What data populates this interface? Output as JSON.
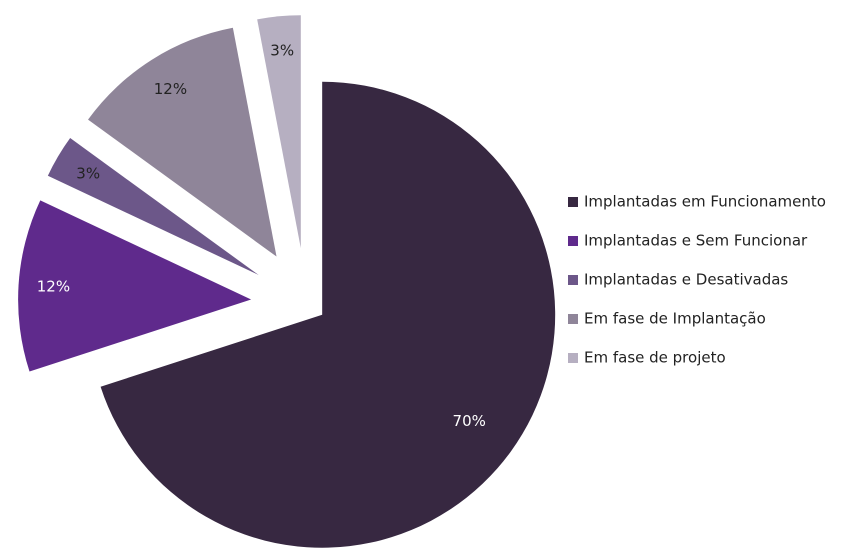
{
  "chart_data": {
    "type": "pie",
    "categories": [
      "Implantadas em Funcionamento",
      "Implantadas e Sem Funcionar",
      "Implantadas e Desativadas",
      "Em fase de Implantação",
      "Em fase de projeto"
    ],
    "values": [
      70,
      12,
      3,
      12,
      3
    ],
    "value_labels": [
      "70%",
      "12%",
      "3%",
      "12%",
      "3%"
    ],
    "colors": [
      "#372841",
      "#5f2a8c",
      "#6c5789",
      "#8f8599",
      "#b6afc1"
    ],
    "legend": "right"
  }
}
